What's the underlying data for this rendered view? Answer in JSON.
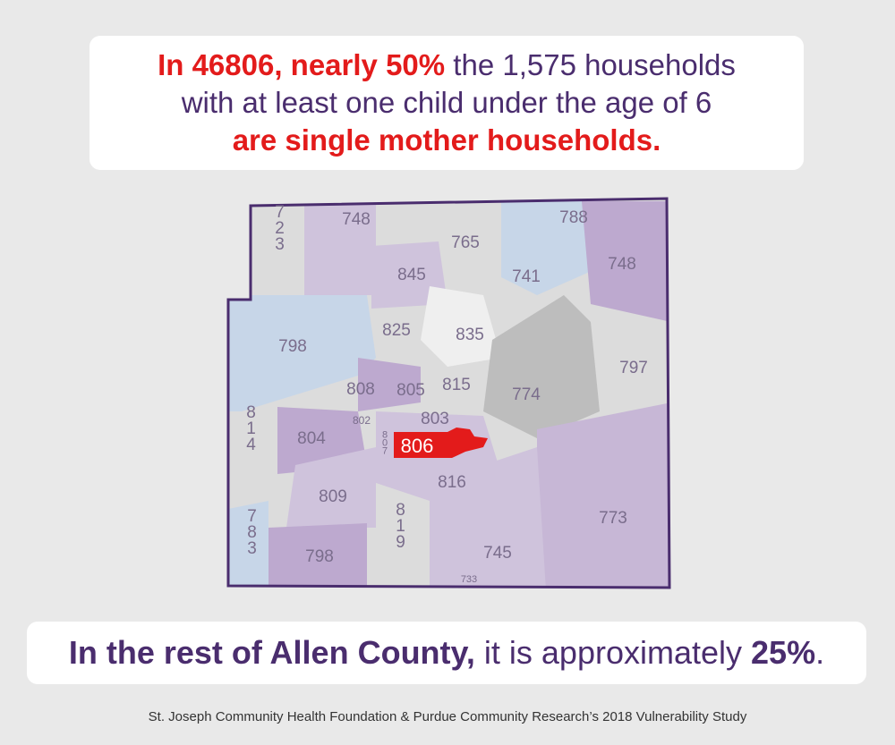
{
  "headline": {
    "line1": [
      "In 46806, nearly 50%",
      "the 1,575 households"
    ],
    "line2": "with at least one child under the age of 6",
    "line3": "are single mother households."
  },
  "map": {
    "labels": [
      "748",
      "788",
      "723",
      "765",
      "741",
      "748",
      "845",
      "825",
      "835",
      "798",
      "797",
      "808",
      "805",
      "815",
      "774",
      "802",
      "803",
      "814",
      "804",
      "806",
      "807",
      "809",
      "816",
      "773",
      "783",
      "819",
      "798",
      "745",
      "733"
    ]
  },
  "bottom": [
    "In the rest of Allen County,",
    "it is approximately",
    "25%",
    "."
  ],
  "footer": "St. Joseph Community Health Foundation & Purdue Community Research’s 2018 Vulnerability Study"
}
